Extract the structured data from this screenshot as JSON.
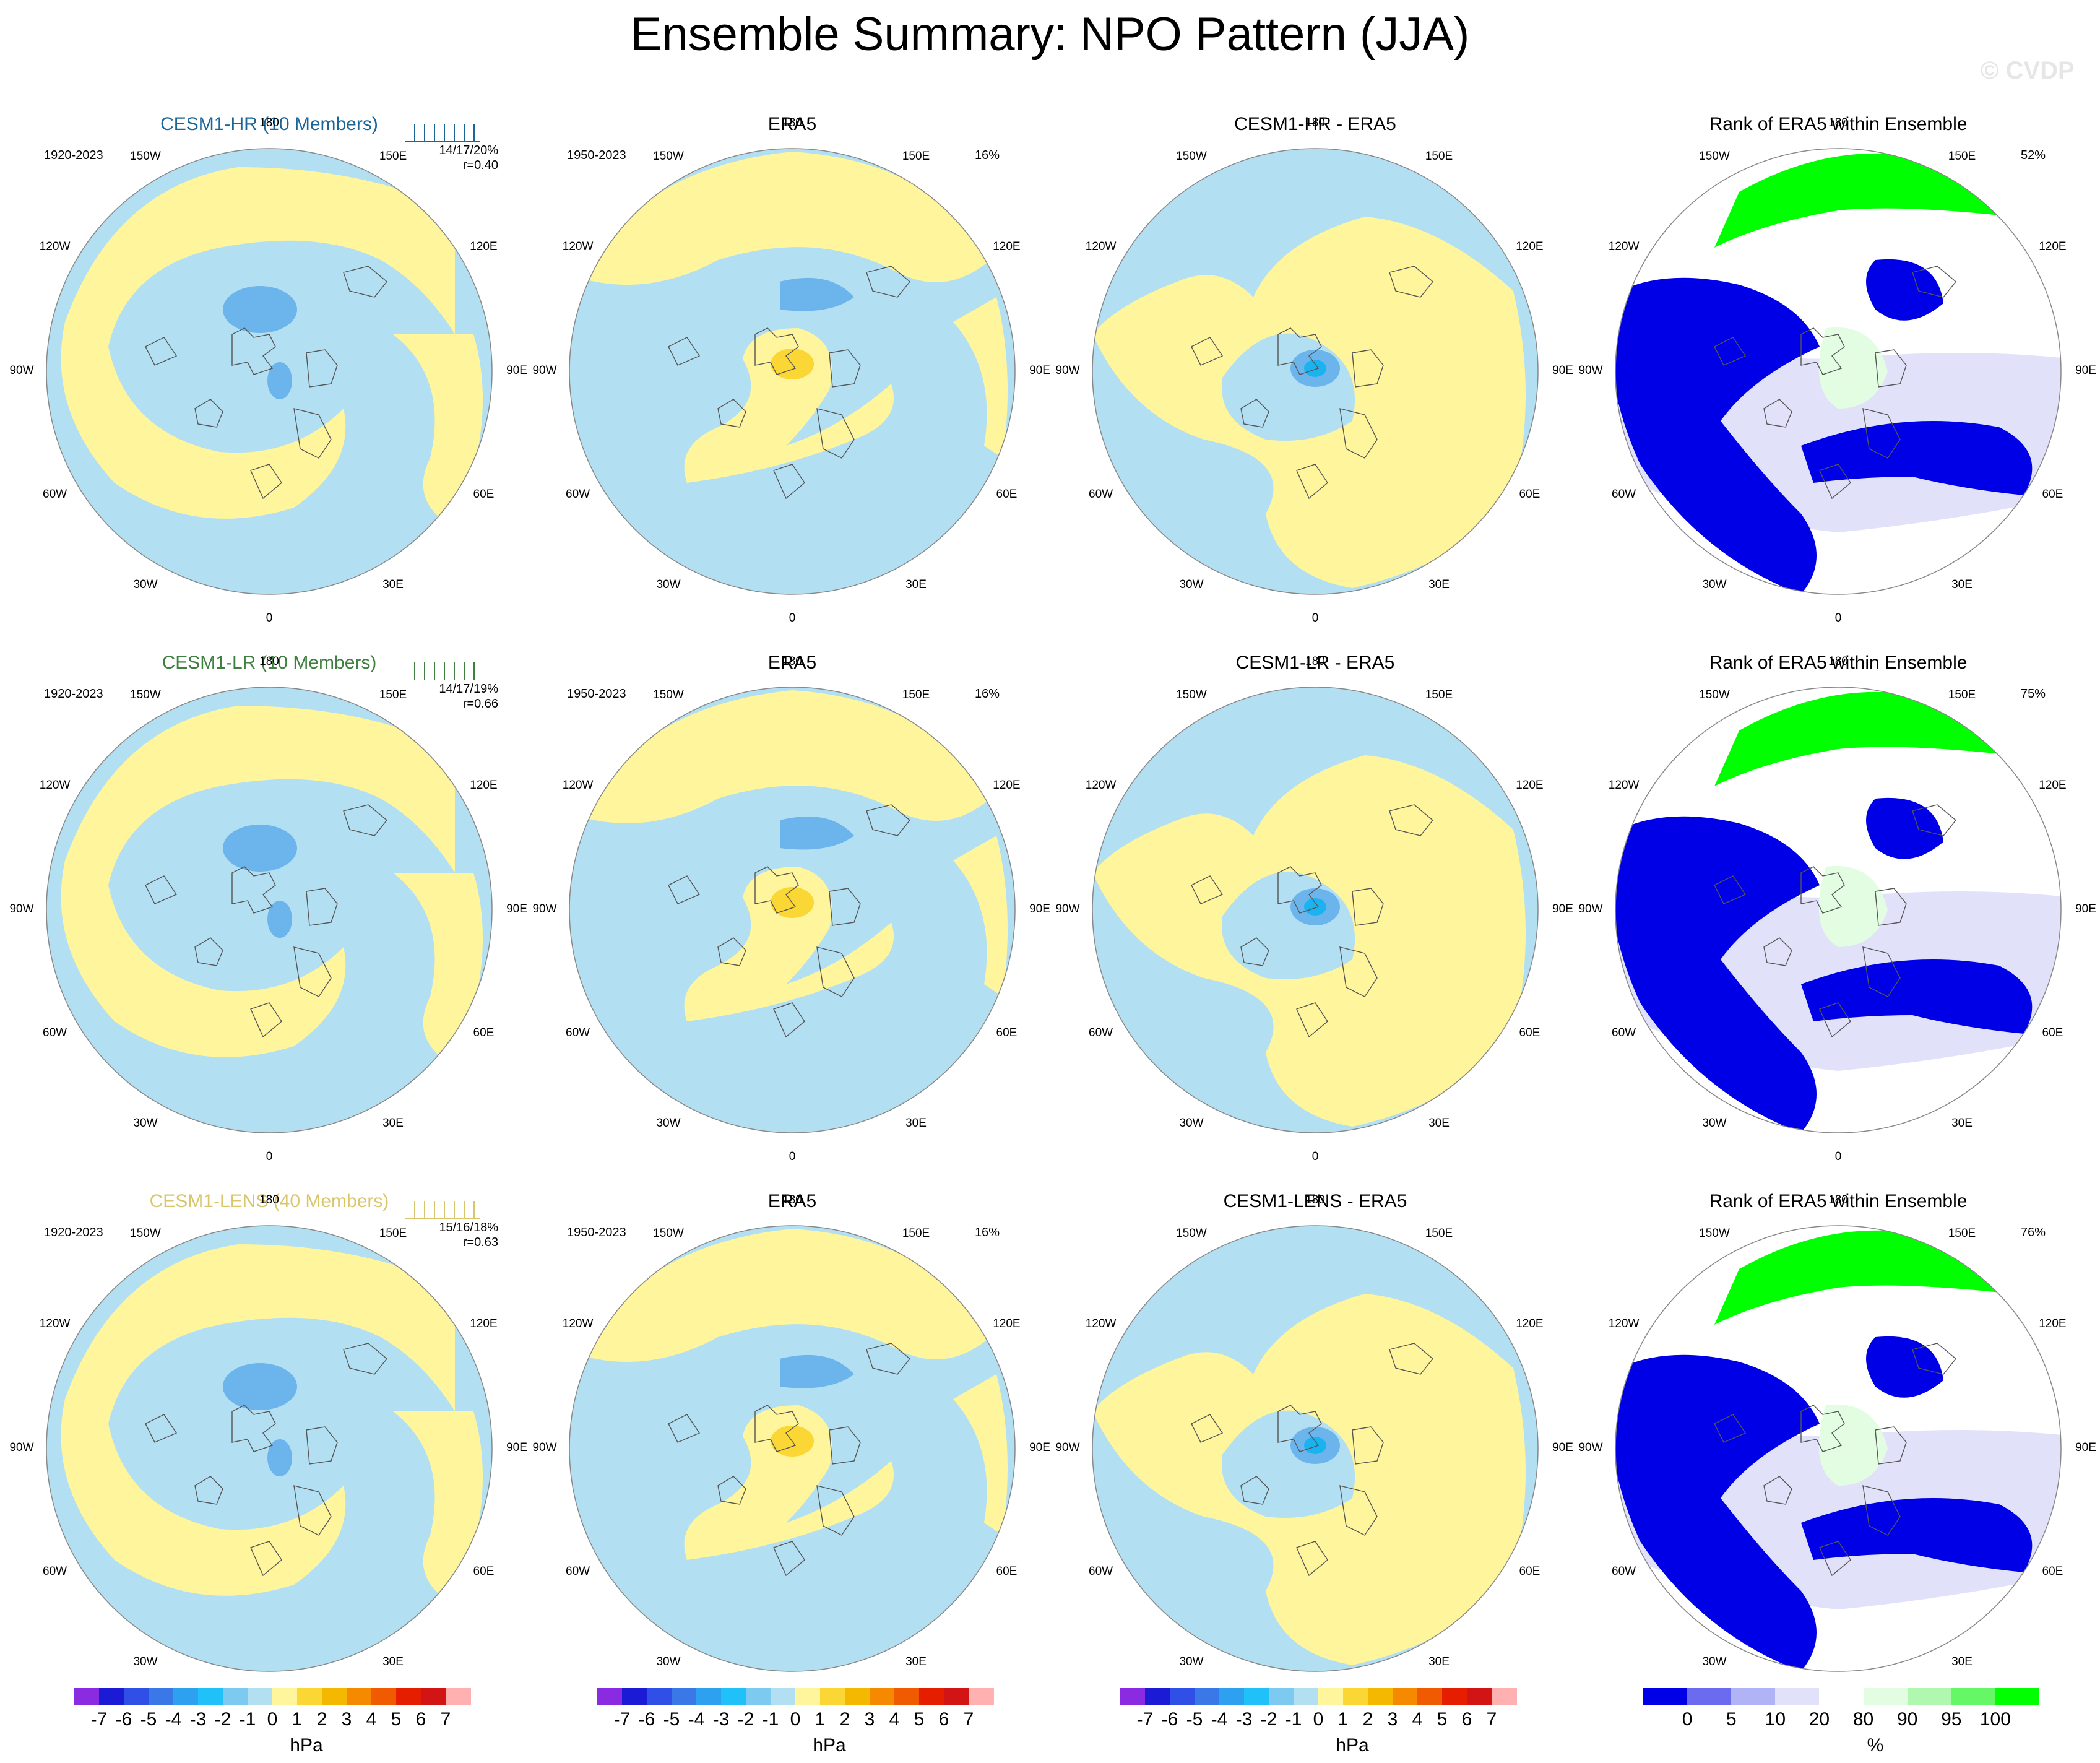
{
  "title": "Ensemble Summary: NPO Pattern (JJA)",
  "watermark": "© CVDP",
  "direction_labels": [
    "180",
    "150E",
    "120E",
    "90E",
    "60E",
    "30E",
    "0",
    "30W",
    "60W",
    "90W",
    "120W",
    "150W"
  ],
  "colors": {
    "neg_light": "#b3dff2",
    "pos_light": "#fff59d",
    "neg_mid": "#6cb4ec",
    "neg_strong": "#1ab3f0",
    "pos_mid": "#fbd736",
    "rank_low": "#0000e6",
    "rank_mid": "#e1e2fa",
    "rank_white": "#ffffff",
    "rank_high": "#00ff00",
    "rank_highlight": "#e3fde3"
  },
  "rows": [
    {
      "model": {
        "title": "CESM1-HR (10 Members)",
        "title_color": "#1a6699",
        "period": "1920-2023",
        "stats": "14/17/20%",
        "corr": "r=0.40"
      },
      "obs": {
        "title": "ERA5",
        "period": "1950-2023",
        "pct": "16%"
      },
      "diff": {
        "title": "CESM1-HR - ERA5"
      },
      "rank": {
        "title": "Rank of ERA5 within Ensemble",
        "pct": "52%"
      }
    },
    {
      "model": {
        "title": "CESM1-LR (10 Members)",
        "title_color": "#3f7f3f",
        "period": "1920-2023",
        "stats": "14/17/19%",
        "corr": "r=0.66"
      },
      "obs": {
        "title": "ERA5",
        "period": "1950-2023",
        "pct": "16%"
      },
      "diff": {
        "title": "CESM1-LR - ERA5"
      },
      "rank": {
        "title": "Rank of ERA5 within Ensemble",
        "pct": "75%"
      }
    },
    {
      "model": {
        "title": "CESM1-LENS (40 Members)",
        "title_color": "#d9c66b",
        "period": "1920-2023",
        "stats": "15/16/18%",
        "corr": "r=0.63"
      },
      "obs": {
        "title": "ERA5",
        "period": "1950-2023",
        "pct": "16%"
      },
      "diff": {
        "title": "CESM1-LENS - ERA5"
      },
      "rank": {
        "title": "Rank of ERA5 within Ensemble",
        "pct": "76%"
      }
    }
  ],
  "hpa_colorbar": {
    "units": "hPa",
    "ticks": [
      "-7",
      "-6",
      "-5",
      "-4",
      "-3",
      "-2",
      "-1",
      "0",
      "1",
      "2",
      "3",
      "4",
      "5",
      "6",
      "7"
    ],
    "colors": [
      "#8a2be2",
      "#1b1bd6",
      "#2f4fe6",
      "#3a78e8",
      "#2ea0f0",
      "#20c0f8",
      "#7ccaf0",
      "#b3dff2",
      "#fff59d",
      "#fbd736",
      "#f5b800",
      "#f58a00",
      "#f05a00",
      "#e61e00",
      "#d21414",
      "#ffb0b0"
    ]
  },
  "pct_colorbar": {
    "units": "%",
    "ticks": [
      "0",
      "5",
      "10",
      "20",
      "80",
      "90",
      "95",
      "100"
    ],
    "colors": [
      "#0000e6",
      "#6b6bf0",
      "#b0b3f5",
      "#e1e2fa",
      "#ffffff",
      "#e3fde3",
      "#b0f7b0",
      "#66f766",
      "#00ff00"
    ]
  }
}
